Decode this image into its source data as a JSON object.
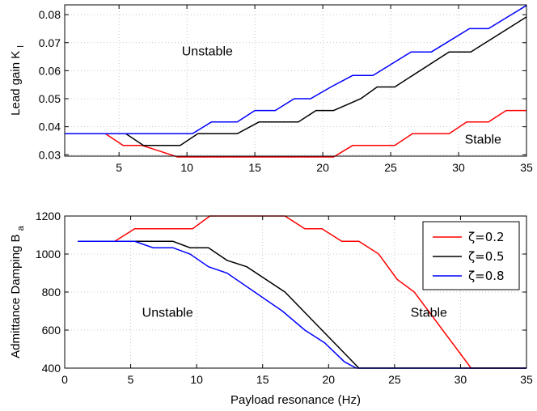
{
  "chart_data": [
    {
      "type": "line",
      "ylabel_main": "Lead gain K",
      "ylabel_sub": "l",
      "xlabel": "",
      "xlim": [
        1,
        35
      ],
      "ylim": [
        0.0295,
        0.0835
      ],
      "xticks": [
        5,
        10,
        15,
        20,
        25,
        30,
        35
      ],
      "yticks": [
        0.03,
        0.04,
        0.05,
        0.06,
        0.07,
        0.08
      ],
      "ytick_labels": [
        "0.03",
        "0.04",
        "0.05",
        "0.06",
        "0.07",
        "0.08"
      ],
      "grid": true,
      "annotations": [
        {
          "text": "Unstable",
          "x": 11.5,
          "y": 0.0655
        },
        {
          "text": "Stable",
          "x": 31.8,
          "y": 0.034
        }
      ],
      "series": [
        {
          "color": "#ff0000",
          "points": [
            [
              1,
              0.0375
            ],
            [
              4,
              0.0375
            ],
            [
              5.3,
              0.0333
            ],
            [
              6.7,
              0.0333
            ],
            [
              8,
              0.0313
            ],
            [
              9.3,
              0.0292
            ],
            [
              10.6,
              0.0292
            ],
            [
              20.8,
              0.0292
            ],
            [
              22.2,
              0.0333
            ],
            [
              25.3,
              0.0333
            ],
            [
              26.6,
              0.0375
            ],
            [
              29.3,
              0.0375
            ],
            [
              30.6,
              0.0417
            ],
            [
              32.2,
              0.0417
            ],
            [
              33.5,
              0.0458
            ],
            [
              35,
              0.0458
            ]
          ]
        },
        {
          "color": "#000000",
          "points": [
            [
              1,
              0.0375
            ],
            [
              5.5,
              0.0375
            ],
            [
              6.8,
              0.0333
            ],
            [
              9.5,
              0.0333
            ],
            [
              10.8,
              0.0375
            ],
            [
              13.7,
              0.0375
            ],
            [
              15.3,
              0.0417
            ],
            [
              18.2,
              0.0417
            ],
            [
              19.5,
              0.0458
            ],
            [
              20.8,
              0.0458
            ],
            [
              22.8,
              0.05
            ],
            [
              24.0,
              0.0542
            ],
            [
              25.3,
              0.0542
            ],
            [
              29.3,
              0.0667
            ],
            [
              30.9,
              0.0667
            ],
            [
              35,
              0.0792
            ]
          ]
        },
        {
          "color": "#0000ff",
          "points": [
            [
              1,
              0.0375
            ],
            [
              10.4,
              0.0375
            ],
            [
              11.8,
              0.0417
            ],
            [
              13.7,
              0.0417
            ],
            [
              15,
              0.0458
            ],
            [
              16.5,
              0.0458
            ],
            [
              17.9,
              0.05
            ],
            [
              19.1,
              0.05
            ],
            [
              20.6,
              0.0542
            ],
            [
              22.2,
              0.0583
            ],
            [
              23.7,
              0.0583
            ],
            [
              26.5,
              0.0667
            ],
            [
              28,
              0.0667
            ],
            [
              30.8,
              0.075
            ],
            [
              32.2,
              0.075
            ],
            [
              35,
              0.0833
            ]
          ]
        }
      ]
    },
    {
      "type": "line",
      "ylabel_main": "Admittance Damping B",
      "ylabel_sub": "a",
      "xlabel": "Payload resonance (Hz)",
      "xlim": [
        0,
        35
      ],
      "ylim": [
        400,
        1200
      ],
      "xticks": [
        0,
        5,
        10,
        15,
        20,
        25,
        30,
        35
      ],
      "yticks": [
        400,
        600,
        800,
        1000,
        1200
      ],
      "ytick_labels": [
        "400",
        "600",
        "800",
        "1000",
        "1200"
      ],
      "grid": true,
      "legend_position": "top-right",
      "annotations": [
        {
          "text": "Unstable",
          "x": 7.8,
          "y": 670
        },
        {
          "text": "Stable",
          "x": 27.6,
          "y": 670
        }
      ],
      "series": [
        {
          "name": "ζ=0.2",
          "color": "#ff0000",
          "points": [
            [
              1,
              1067
            ],
            [
              3.8,
              1067
            ],
            [
              5.3,
              1133
            ],
            [
              9.7,
              1133
            ],
            [
              11,
              1200
            ],
            [
              16.7,
              1200
            ],
            [
              18.2,
              1133
            ],
            [
              19.5,
              1133
            ],
            [
              21,
              1067
            ],
            [
              22.3,
              1067
            ],
            [
              23.8,
              1000
            ],
            [
              25.2,
              867
            ],
            [
              26.5,
              800
            ],
            [
              30.8,
              400
            ],
            [
              35,
              400
            ]
          ]
        },
        {
          "name": "ζ=0.5",
          "color": "#000000",
          "points": [
            [
              1,
              1067
            ],
            [
              6.7,
              1067
            ],
            [
              8.2,
              1067
            ],
            [
              9.5,
              1033
            ],
            [
              10.9,
              1033
            ],
            [
              12.3,
              967
            ],
            [
              13.8,
              933
            ],
            [
              16.7,
              800
            ],
            [
              22.3,
              400
            ],
            [
              35,
              400
            ]
          ]
        },
        {
          "name": "ζ=0.8",
          "color": "#0000ff",
          "points": [
            [
              1,
              1067
            ],
            [
              5.3,
              1067
            ],
            [
              6.7,
              1033
            ],
            [
              8.2,
              1033
            ],
            [
              9.5,
              1000
            ],
            [
              10.9,
              933
            ],
            [
              12.3,
              900
            ],
            [
              16.5,
              700
            ],
            [
              18.2,
              600
            ],
            [
              19.7,
              533
            ],
            [
              21.2,
              433
            ],
            [
              22.1,
              400
            ],
            [
              35,
              400
            ]
          ]
        }
      ]
    }
  ]
}
